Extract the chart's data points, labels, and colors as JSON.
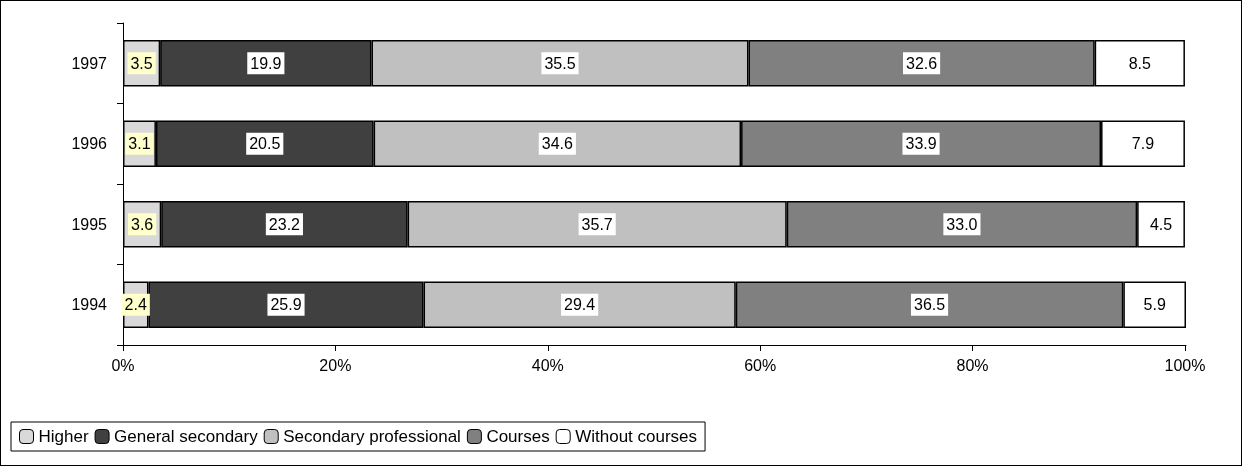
{
  "chart_data": {
    "type": "bar",
    "orientation": "horizontal",
    "stacked": true,
    "categories": [
      "1997",
      "1996",
      "1995",
      "1994"
    ],
    "series": [
      {
        "name": "Higher",
        "color": "#d9d9d9",
        "values": [
          3.5,
          3.1,
          3.6,
          2.4
        ],
        "value_labels": [
          "3.5",
          "3.1",
          "3.6",
          "2.4"
        ]
      },
      {
        "name": "General secondary",
        "color": "#404040",
        "values": [
          19.9,
          20.5,
          23.2,
          25.9
        ],
        "value_labels": [
          "19.9",
          "20.5",
          "23.2",
          "25.9"
        ]
      },
      {
        "name": "Secondary professional",
        "color": "#c0c0c0",
        "values": [
          35.5,
          34.6,
          35.7,
          29.4
        ],
        "value_labels": [
          "35.5",
          "34.6",
          "35.7",
          "29.4"
        ]
      },
      {
        "name": "Courses",
        "color": "#808080",
        "values": [
          32.6,
          33.9,
          33.0,
          36.5
        ],
        "value_labels": [
          "32.6",
          "33.9",
          "33.0",
          "36.5"
        ]
      },
      {
        "name": "Without courses",
        "color": "#ffffff",
        "values": [
          8.5,
          7.9,
          4.5,
          5.9
        ],
        "value_labels": [
          "8.5",
          "7.9",
          "4.5",
          "5.9"
        ]
      }
    ],
    "xlim": [
      0,
      100.1
    ],
    "xticks": [
      {
        "value": 0,
        "label": "0%"
      },
      {
        "value": 20,
        "label": "20%"
      },
      {
        "value": 40,
        "label": "40%"
      },
      {
        "value": 60,
        "label": "60%"
      },
      {
        "value": 80,
        "label": "80%"
      },
      {
        "value": 100,
        "label": "100%"
      }
    ],
    "grid": false,
    "legend": "bottom"
  }
}
